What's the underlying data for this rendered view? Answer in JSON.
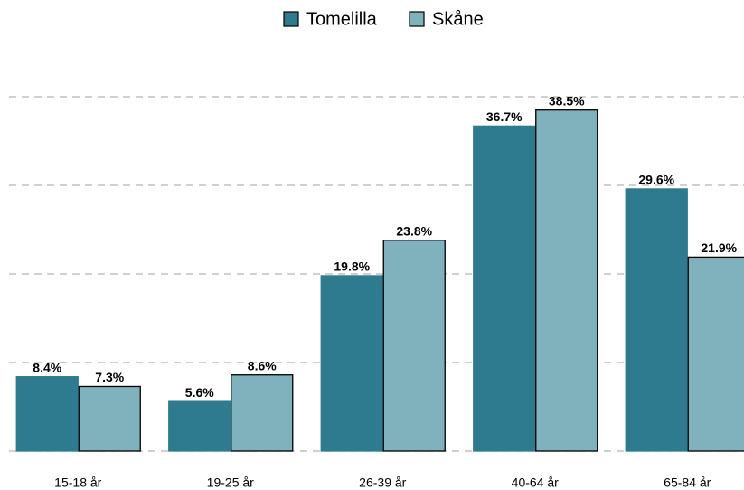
{
  "chart_data": {
    "type": "bar",
    "categories": [
      "15-18 år",
      "19-25 år",
      "26-39 år",
      "40-64 år",
      "65-84 år"
    ],
    "series": [
      {
        "name": "Tomelilla",
        "color": "#2e7b8f",
        "values": [
          8.4,
          5.6,
          19.8,
          36.7,
          29.6
        ],
        "value_labels": [
          "8.4%",
          "5.6%",
          "19.8%",
          "36.7%",
          "29.6%"
        ]
      },
      {
        "name": "Skåne",
        "color": "#7fb2bc",
        "values": [
          7.3,
          8.6,
          23.8,
          38.5,
          21.9
        ],
        "value_labels": [
          "7.3%",
          "8.6%",
          "23.8%",
          "38.5%",
          "21.9%"
        ]
      }
    ],
    "ylim": [
      0,
      45
    ],
    "yticks": [
      0,
      10,
      20,
      30,
      40
    ],
    "grid": true,
    "legend": "top"
  }
}
